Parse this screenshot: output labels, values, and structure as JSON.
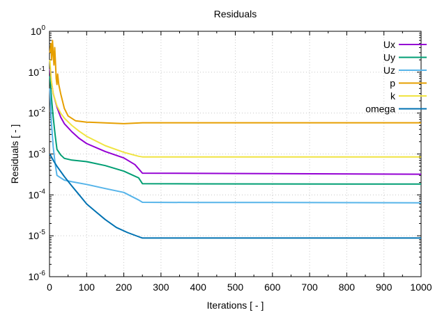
{
  "chart_data": {
    "type": "line",
    "title": "Residuals",
    "xlabel": "Iterations [ - ]",
    "ylabel": "Residuals [ - ]",
    "xlim": [
      0,
      1000
    ],
    "ylim": [
      1e-06,
      1
    ],
    "yscale": "log",
    "grid": true,
    "legend_position": "top-right",
    "x_ticks": [
      0,
      100,
      200,
      300,
      400,
      500,
      600,
      700,
      800,
      900,
      1000
    ],
    "y_ticks": [
      {
        "value": 1e-06,
        "base": "10",
        "exp": "-6"
      },
      {
        "value": 1e-05,
        "base": "10",
        "exp": "-5"
      },
      {
        "value": 0.0001,
        "base": "10",
        "exp": "-4"
      },
      {
        "value": 0.001,
        "base": "10",
        "exp": "-3"
      },
      {
        "value": 0.01,
        "base": "10",
        "exp": "-2"
      },
      {
        "value": 0.1,
        "base": "10",
        "exp": "-1"
      },
      {
        "value": 1,
        "base": "10",
        "exp": "0"
      }
    ],
    "series": [
      {
        "name": "Ux",
        "color": "#9400d3",
        "points": [
          [
            1,
            0.12
          ],
          [
            5,
            0.06
          ],
          [
            10,
            0.03
          ],
          [
            20,
            0.014
          ],
          [
            30,
            0.008
          ],
          [
            40,
            0.0055
          ],
          [
            60,
            0.0035
          ],
          [
            80,
            0.0024
          ],
          [
            100,
            0.0018
          ],
          [
            150,
            0.00115
          ],
          [
            200,
            0.0008
          ],
          [
            230,
            0.00055
          ],
          [
            250,
            0.00034
          ],
          [
            400,
            0.000335
          ],
          [
            600,
            0.00033
          ],
          [
            1000,
            0.00032
          ]
        ]
      },
      {
        "name": "Uy",
        "color": "#009e73",
        "points": [
          [
            1,
            0.08
          ],
          [
            5,
            0.025
          ],
          [
            10,
            0.008
          ],
          [
            15,
            0.003
          ],
          [
            20,
            0.0013
          ],
          [
            30,
            0.00095
          ],
          [
            40,
            0.00078
          ],
          [
            60,
            0.00071
          ],
          [
            100,
            0.00065
          ],
          [
            150,
            0.00052
          ],
          [
            200,
            0.00038
          ],
          [
            240,
            0.00026
          ],
          [
            250,
            0.000188
          ],
          [
            400,
            0.000186
          ],
          [
            600,
            0.000185
          ],
          [
            1000,
            0.000184
          ]
        ]
      },
      {
        "name": "Uz",
        "color": "#56b4e9",
        "points": [
          [
            1,
            0.04
          ],
          [
            5,
            0.006
          ],
          [
            10,
            0.0015
          ],
          [
            15,
            0.0006
          ],
          [
            20,
            0.0003
          ],
          [
            40,
            0.00023
          ],
          [
            60,
            0.00021
          ],
          [
            100,
            0.00018
          ],
          [
            150,
            0.000143
          ],
          [
            200,
            0.000115
          ],
          [
            240,
            7.5e-05
          ],
          [
            250,
            6.6e-05
          ],
          [
            400,
            6.5e-05
          ],
          [
            600,
            6.5e-05
          ],
          [
            1000,
            6.4e-05
          ]
        ]
      },
      {
        "name": "p",
        "color": "#e69f00",
        "points": [
          [
            1,
            0.3
          ],
          [
            4,
            0.5
          ],
          [
            6,
            0.2
          ],
          [
            8,
            0.6
          ],
          [
            10,
            0.3
          ],
          [
            12,
            0.15
          ],
          [
            14,
            0.4
          ],
          [
            16,
            0.18
          ],
          [
            18,
            0.07
          ],
          [
            20,
            0.05
          ],
          [
            22,
            0.09
          ],
          [
            25,
            0.05
          ],
          [
            30,
            0.03
          ],
          [
            40,
            0.013
          ],
          [
            50,
            0.0085
          ],
          [
            70,
            0.0065
          ],
          [
            100,
            0.006
          ],
          [
            200,
            0.0055
          ],
          [
            250,
            0.0058
          ],
          [
            400,
            0.0058
          ],
          [
            600,
            0.0058
          ],
          [
            1000,
            0.0058
          ]
        ]
      },
      {
        "name": "k",
        "color": "#f0e442",
        "points": [
          [
            1,
            0.2
          ],
          [
            5,
            0.06
          ],
          [
            10,
            0.03
          ],
          [
            20,
            0.015
          ],
          [
            30,
            0.01
          ],
          [
            40,
            0.0075
          ],
          [
            60,
            0.005
          ],
          [
            80,
            0.0036
          ],
          [
            100,
            0.0027
          ],
          [
            150,
            0.0016
          ],
          [
            200,
            0.0011
          ],
          [
            240,
            0.00088
          ],
          [
            250,
            0.00085
          ],
          [
            400,
            0.00085
          ],
          [
            600,
            0.00085
          ],
          [
            1000,
            0.00085
          ]
        ]
      },
      {
        "name": "omega",
        "color": "#0072b2",
        "points": [
          [
            1,
            0.001
          ],
          [
            10,
            0.0007
          ],
          [
            20,
            0.0005
          ],
          [
            40,
            0.00028
          ],
          [
            60,
            0.000165
          ],
          [
            80,
            0.0001
          ],
          [
            100,
            6e-05
          ],
          [
            120,
            4.2e-05
          ],
          [
            150,
            2.5e-05
          ],
          [
            180,
            1.6e-05
          ],
          [
            210,
            1.2e-05
          ],
          [
            240,
            9.5e-06
          ],
          [
            250,
            8.8e-06
          ],
          [
            400,
            8.8e-06
          ],
          [
            600,
            8.8e-06
          ],
          [
            1000,
            8.8e-06
          ]
        ]
      }
    ]
  }
}
